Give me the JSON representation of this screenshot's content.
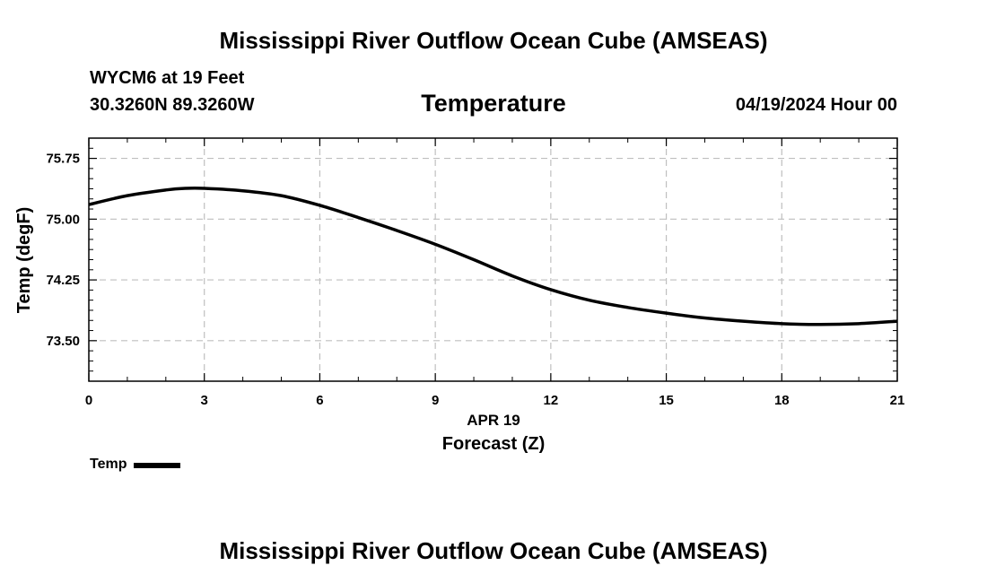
{
  "header": {
    "title": "Mississippi River Outflow Ocean Cube (AMSEAS)",
    "station": "WYCM6 at 19 Feet",
    "coords": "30.3260N  89.3260W",
    "chart_title": "Temperature",
    "run_time": "04/19/2024 Hour 00"
  },
  "footer": {
    "title": "Mississippi River Outflow Ocean Cube (AMSEAS)"
  },
  "chart_data": {
    "type": "line",
    "title": "Temperature",
    "xlabel": "Forecast (Z)",
    "xlabel_date": "APR 19",
    "ylabel": "Temp (degF)",
    "xlim": [
      0,
      21
    ],
    "ylim": [
      73.0,
      76.0
    ],
    "xticks": [
      0,
      3,
      6,
      9,
      12,
      15,
      18,
      21
    ],
    "xtick_labels": [
      "0",
      "3",
      "6",
      "9",
      "12",
      "15",
      "18",
      "21"
    ],
    "yticks": [
      73.5,
      74.25,
      75.0,
      75.75
    ],
    "ytick_labels": [
      "73.50",
      "74.25",
      "75.00",
      "75.75"
    ],
    "grid": true,
    "legend": "bottom-left",
    "series": [
      {
        "name": "Temp",
        "color": "#000000",
        "x": [
          0,
          1,
          2,
          2.5,
          3,
          4,
          5,
          6,
          7,
          8,
          9,
          10,
          11,
          12,
          13,
          14,
          15,
          16,
          17,
          18,
          19,
          20,
          21
        ],
        "y": [
          75.18,
          75.29,
          75.36,
          75.38,
          75.38,
          75.35,
          75.29,
          75.17,
          75.02,
          74.86,
          74.69,
          74.5,
          74.3,
          74.13,
          74.0,
          73.91,
          73.84,
          73.78,
          73.74,
          73.71,
          73.7,
          73.71,
          73.74
        ]
      }
    ]
  }
}
